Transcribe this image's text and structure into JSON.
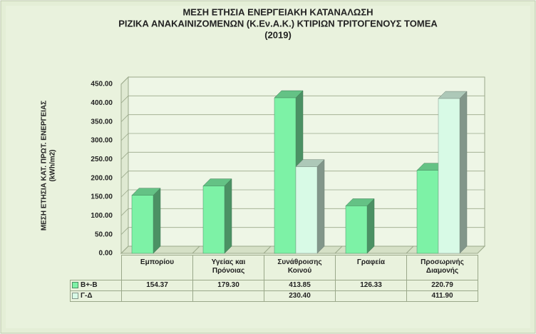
{
  "chart_data": {
    "type": "bar3d",
    "title": [
      "ΜΕΣΗ ΕΤΗΣΙΑ ΕΝΕΡΓΕΙΑΚΗ ΚΑΤΑΝΑΛΩΣΗ",
      "ΡΙΖΙΚΑ ΑΝΑΚΑΙΝΙΖΟΜΕΝΩΝ (Κ.Εν.Α.Κ.) ΚΤΙΡΙΩΝ ΤΡΙΤΟΓΕΝΟΥΣ ΤΟΜΕΑ",
      "(2019)"
    ],
    "ylabel": [
      "ΜΕΣΗ ΕΤΗΣΙΑ ΚΑΤ. ΠΡΩΤ. ΕΝΕΡΓΕΙΑΣ",
      "(kWh/m2)"
    ],
    "categories": [
      "Εμπορίου",
      "Υγείας και Πρόνοιας",
      "Συνάθροισης Κοινού",
      "Γραφεία",
      "Προσωρινής Διαμονής"
    ],
    "series": [
      {
        "name": "Β+-Β",
        "color": "#7df2a6",
        "values": [
          154.37,
          179.3,
          413.85,
          126.33,
          220.79
        ],
        "value_labels": [
          "154.37",
          "179.30",
          "413.85",
          "126.33",
          "220.79"
        ]
      },
      {
        "name": "Γ-Δ",
        "color": "#d8fae6",
        "values": [
          null,
          null,
          230.4,
          null,
          411.9
        ],
        "value_labels": [
          null,
          null,
          "230.40",
          null,
          "411.90"
        ]
      }
    ],
    "ylim": [
      0,
      450
    ],
    "yticks": [
      {
        "value": 0,
        "label": "0.00"
      },
      {
        "value": 50,
        "label": "50.00"
      },
      {
        "value": 100,
        "label": "100.00"
      },
      {
        "value": 150,
        "label": "150.00"
      },
      {
        "value": 200,
        "label": "200.00"
      },
      {
        "value": 250,
        "label": "250.00"
      },
      {
        "value": 300,
        "label": "300.00"
      },
      {
        "value": 350,
        "label": "350.00"
      },
      {
        "value": 400,
        "label": "400.00"
      },
      {
        "value": 450,
        "label": "450.00"
      }
    ],
    "grid": true
  }
}
